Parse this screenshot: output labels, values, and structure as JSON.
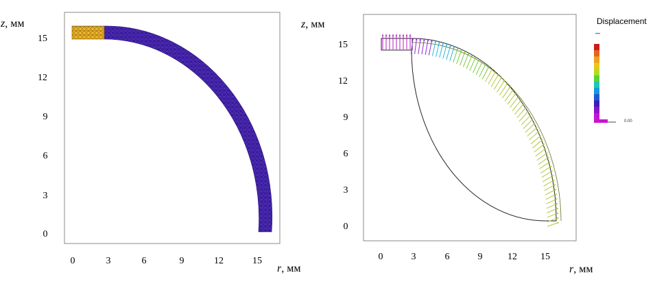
{
  "panels": [
    {
      "id": "mesh",
      "ylabel_var": "z",
      "ylabel_unit": ", мм",
      "xlabel_var": "r",
      "xlabel_unit": ", мм",
      "xticks": [
        "0",
        "3",
        "6",
        "9",
        "12",
        "15"
      ],
      "yticks": [
        "0",
        "3",
        "6",
        "9",
        "12",
        "15"
      ]
    },
    {
      "id": "displacement",
      "ylabel_var": "z",
      "ylabel_unit": ", мм",
      "xlabel_var": "r",
      "xlabel_unit": ", мм",
      "xticks": [
        "0",
        "3",
        "6",
        "9",
        "12",
        "15"
      ],
      "yticks": [
        "0",
        "3",
        "6",
        "9",
        "12",
        "15"
      ],
      "legend": {
        "title": "Displacement",
        "max_label": "–",
        "min_label": "0.00"
      }
    }
  ],
  "colors": {
    "mesh_fill": "#3a1b9a",
    "mesh_tip": "#f0b428",
    "legend_scale": [
      "#c81e1e",
      "#e8641e",
      "#f0a01e",
      "#e6c81e",
      "#b4dc1e",
      "#5ad23c",
      "#1ec8b4",
      "#1e96dc",
      "#1e5ad2",
      "#3c1eb4",
      "#8c14c8",
      "#c814d2"
    ]
  }
}
